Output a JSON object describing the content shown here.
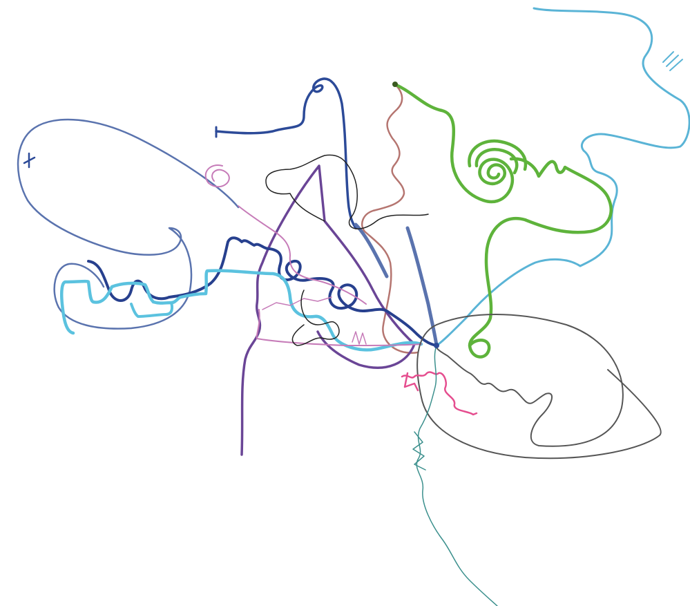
{
  "drawing": {
    "background": "#ffffff",
    "strokes": [
      {
        "name": "lightblue-border-stroke",
        "color": "#5ab4d6"
      },
      {
        "name": "navy-hook-stroke",
        "color": "#2c4a98"
      },
      {
        "name": "slate-loop-stroke",
        "color": "#5a73ae"
      },
      {
        "name": "brown-wave-stroke",
        "color": "#b57570"
      },
      {
        "name": "green-spiral-stroke",
        "color": "#5eb33b"
      },
      {
        "name": "purple-triangle-stroke",
        "color": "#6a4596"
      },
      {
        "name": "navy-coil-stroke",
        "color": "#27408e"
      },
      {
        "name": "cyan-step-stroke",
        "color": "#5bc2df"
      },
      {
        "name": "pink-swirl-stroke",
        "color": "#c67bb8"
      },
      {
        "name": "black-scribble-stroke",
        "color": "#222222"
      },
      {
        "name": "gray-ellipse-stroke",
        "color": "#555555"
      },
      {
        "name": "magenta-squiggle-stroke",
        "color": "#e54e8f"
      },
      {
        "name": "teal-tail-stroke",
        "color": "#3a8f8c"
      }
    ]
  }
}
